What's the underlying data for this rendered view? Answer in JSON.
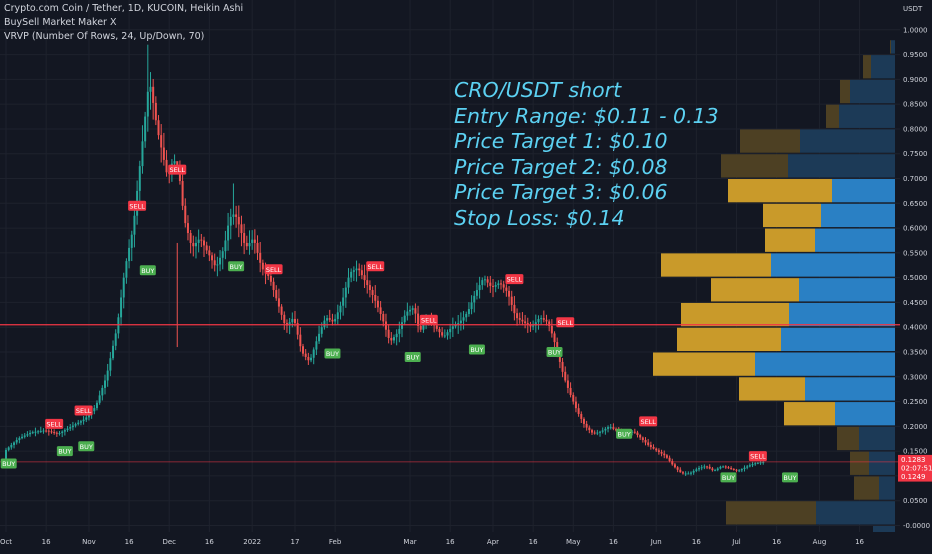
{
  "header": {
    "line1": "Crypto.com Coin / Tether, 1D, KUCOIN, Heikin Ashi",
    "line2": "BuySell Market Maker X",
    "line3": "VRVP (Number Of Rows, 24, Up/Down, 70)"
  },
  "annotation": {
    "lines": [
      "CRO/USDT short",
      "Entry Range: $0.11 - 0.13",
      "Price Target 1: $0.10",
      "Price Target 2: $0.08",
      "Price Target 3: $0.06",
      "Stop Loss: $0.14"
    ]
  },
  "colors": {
    "background": "#131722",
    "grid": "#1e222d",
    "up_candle": "#26a69a",
    "down_candle": "#ef5350",
    "red_line": "#f23645",
    "annotation": "#5cd1f2",
    "vp_up": "#2a80c4",
    "vp_down": "#c99a2a",
    "vp_up_dim": "#1c3a57",
    "vp_down_dim": "#4d4023",
    "buy_label": "#4caf50",
    "sell_label": "#f23645",
    "price_box": "#f23645"
  },
  "chart_data": {
    "type": "candlestick",
    "candle_style": "Heikin Ashi",
    "ylabel": "USDT",
    "ylim": [
      -0.02,
      1.02
    ],
    "y_ticks": [
      "1.0000",
      "0.9500",
      "0.9000",
      "0.8500",
      "0.8000",
      "0.7500",
      "0.7000",
      "0.6500",
      "0.6000",
      "0.5500",
      "0.5000",
      "0.4500",
      "0.4000",
      "0.3500",
      "0.3000",
      "0.2500",
      "0.2000",
      "0.1500",
      "0.1000",
      "0.0500",
      "-0.0000"
    ],
    "y_tick_values": [
      1.0,
      0.95,
      0.9,
      0.85,
      0.8,
      0.75,
      0.7,
      0.65,
      0.6,
      0.55,
      0.5,
      0.45,
      0.4,
      0.35,
      0.3,
      0.25,
      0.2,
      0.15,
      0.1,
      0.05,
      0.0
    ],
    "x_ticks": [
      {
        "label": "Oct",
        "day": 0
      },
      {
        "label": "16",
        "day": 15
      },
      {
        "label": "Nov",
        "day": 31
      },
      {
        "label": "16",
        "day": 46
      },
      {
        "label": "Dec",
        "day": 61
      },
      {
        "label": "16",
        "day": 76
      },
      {
        "label": "2022",
        "day": 92
      },
      {
        "label": "17",
        "day": 108
      },
      {
        "label": "Feb",
        "day": 123
      },
      {
        "label": "Mar",
        "day": 151
      },
      {
        "label": "16",
        "day": 166
      },
      {
        "label": "Apr",
        "day": 182
      },
      {
        "label": "16",
        "day": 197
      },
      {
        "label": "May",
        "day": 212
      },
      {
        "label": "16",
        "day": 227
      },
      {
        "label": "Jun",
        "day": 243
      },
      {
        "label": "16",
        "day": 258
      },
      {
        "label": "Jul",
        "day": 273
      },
      {
        "label": "16",
        "day": 288
      },
      {
        "label": "Aug",
        "day": 304
      },
      {
        "label": "16",
        "day": 319
      }
    ],
    "x_range_days": [
      0,
      330
    ],
    "price_anchors": [
      [
        0,
        0.15
      ],
      [
        5,
        0.175
      ],
      [
        10,
        0.188
      ],
      [
        15,
        0.192
      ],
      [
        20,
        0.185
      ],
      [
        25,
        0.2
      ],
      [
        30,
        0.215
      ],
      [
        34,
        0.24
      ],
      [
        38,
        0.3
      ],
      [
        42,
        0.4
      ],
      [
        45,
        0.52
      ],
      [
        48,
        0.6
      ],
      [
        50,
        0.7
      ],
      [
        52,
        0.8
      ],
      [
        54,
        0.9
      ],
      [
        55,
        0.87
      ],
      [
        57,
        0.8
      ],
      [
        59,
        0.75
      ],
      [
        61,
        0.7
      ],
      [
        63,
        0.74
      ],
      [
        65,
        0.72
      ],
      [
        67,
        0.62
      ],
      [
        70,
        0.56
      ],
      [
        73,
        0.58
      ],
      [
        76,
        0.55
      ],
      [
        79,
        0.52
      ],
      [
        82,
        0.56
      ],
      [
        84,
        0.62
      ],
      [
        86,
        0.63
      ],
      [
        88,
        0.6
      ],
      [
        90,
        0.56
      ],
      [
        93,
        0.58
      ],
      [
        96,
        0.52
      ],
      [
        99,
        0.5
      ],
      [
        102,
        0.45
      ],
      [
        105,
        0.4
      ],
      [
        108,
        0.42
      ],
      [
        111,
        0.35
      ],
      [
        114,
        0.33
      ],
      [
        117,
        0.38
      ],
      [
        120,
        0.42
      ],
      [
        123,
        0.41
      ],
      [
        126,
        0.45
      ],
      [
        129,
        0.51
      ],
      [
        132,
        0.52
      ],
      [
        135,
        0.49
      ],
      [
        138,
        0.46
      ],
      [
        141,
        0.42
      ],
      [
        144,
        0.37
      ],
      [
        147,
        0.39
      ],
      [
        150,
        0.43
      ],
      [
        153,
        0.44
      ],
      [
        155,
        0.39
      ],
      [
        158,
        0.42
      ],
      [
        161,
        0.4
      ],
      [
        164,
        0.38
      ],
      [
        167,
        0.4
      ],
      [
        170,
        0.41
      ],
      [
        173,
        0.43
      ],
      [
        176,
        0.47
      ],
      [
        179,
        0.5
      ],
      [
        182,
        0.48
      ],
      [
        185,
        0.49
      ],
      [
        188,
        0.47
      ],
      [
        191,
        0.42
      ],
      [
        194,
        0.41
      ],
      [
        197,
        0.4
      ],
      [
        200,
        0.42
      ],
      [
        203,
        0.41
      ],
      [
        205,
        0.38
      ],
      [
        207,
        0.34
      ],
      [
        209,
        0.3
      ],
      [
        211,
        0.27
      ],
      [
        214,
        0.23
      ],
      [
        217,
        0.2
      ],
      [
        220,
        0.185
      ],
      [
        223,
        0.19
      ],
      [
        226,
        0.2
      ],
      [
        229,
        0.19
      ],
      [
        232,
        0.185
      ],
      [
        235,
        0.19
      ],
      [
        238,
        0.175
      ],
      [
        241,
        0.16
      ],
      [
        244,
        0.15
      ],
      [
        247,
        0.14
      ],
      [
        250,
        0.12
      ],
      [
        253,
        0.105
      ],
      [
        256,
        0.105
      ],
      [
        259,
        0.115
      ],
      [
        262,
        0.12
      ],
      [
        265,
        0.11
      ],
      [
        268,
        0.12
      ],
      [
        271,
        0.115
      ],
      [
        274,
        0.11
      ],
      [
        277,
        0.118
      ],
      [
        280,
        0.125
      ],
      [
        283,
        0.128
      ]
    ],
    "spikes": [
      {
        "day": 53,
        "high": 0.97
      },
      {
        "day": 64,
        "high": 0.57,
        "low": 0.36
      },
      {
        "day": 85,
        "high": 0.69
      }
    ],
    "horizontal_lines": [
      {
        "price": 0.405,
        "color": "#f23645"
      },
      {
        "price": 0.1283,
        "color": "#f23645"
      }
    ],
    "signals": [
      {
        "type": "BUY",
        "day": 1,
        "price": 0.125,
        "text": "BUY"
      },
      {
        "type": "SELL",
        "day": 18,
        "price": 0.205,
        "text": "SELL"
      },
      {
        "type": "BUY",
        "day": 22,
        "price": 0.15,
        "text": "BUY"
      },
      {
        "type": "SELL",
        "day": 29,
        "price": 0.232,
        "text": "SELL"
      },
      {
        "type": "BUY",
        "day": 30,
        "price": 0.16,
        "text": "BUY"
      },
      {
        "type": "SELL",
        "day": 49,
        "price": 0.645,
        "text": "SELL"
      },
      {
        "type": "BUY",
        "day": 53,
        "price": 0.515,
        "text": "BUY"
      },
      {
        "type": "SELL",
        "day": 64,
        "price": 0.718,
        "text": "SELL"
      },
      {
        "type": "BUY",
        "day": 86,
        "price": 0.523,
        "text": "BUY"
      },
      {
        "type": "SELL",
        "day": 100,
        "price": 0.517,
        "text": "SELL"
      },
      {
        "type": "BUY",
        "day": 122,
        "price": 0.347,
        "text": "BUY"
      },
      {
        "type": "SELL",
        "day": 138,
        "price": 0.523,
        "text": "SELL"
      },
      {
        "type": "BUY",
        "day": 152,
        "price": 0.34,
        "text": "BUY"
      },
      {
        "type": "SELL",
        "day": 158,
        "price": 0.415,
        "text": "SELL"
      },
      {
        "type": "BUY",
        "day": 176,
        "price": 0.355,
        "text": "BUY"
      },
      {
        "type": "SELL",
        "day": 190,
        "price": 0.497,
        "text": "SELL"
      },
      {
        "type": "SELL",
        "day": 209,
        "price": 0.41,
        "text": "SELL"
      },
      {
        "type": "BUY",
        "day": 205,
        "price": 0.35,
        "text": "BUY"
      },
      {
        "type": "BUY",
        "day": 231,
        "price": 0.185,
        "text": "BUY"
      },
      {
        "type": "SELL",
        "day": 240,
        "price": 0.21,
        "text": "SELL"
      },
      {
        "type": "BUY",
        "day": 270,
        "price": 0.097,
        "text": "BUY"
      },
      {
        "type": "SELL",
        "day": 281,
        "price": 0.14,
        "text": "SELL"
      },
      {
        "type": "BUY",
        "day": 293,
        "price": 0.097,
        "text": "BUY"
      }
    ],
    "volume_profile": {
      "rows": [
        {
          "price_low": 0.95,
          "price_high": 0.98,
          "up": 4,
          "down": 1,
          "dim": true
        },
        {
          "price_low": 0.9,
          "price_high": 0.95,
          "up": 24,
          "down": 8,
          "dim": true
        },
        {
          "price_low": 0.85,
          "price_high": 0.9,
          "up": 45,
          "down": 10,
          "dim": true
        },
        {
          "price_low": 0.8,
          "price_high": 0.85,
          "up": 56,
          "down": 13,
          "dim": true
        },
        {
          "price_low": 0.75,
          "price_high": 0.8,
          "up": 95,
          "down": 60,
          "dim": true
        },
        {
          "price_low": 0.7,
          "price_high": 0.75,
          "up": 107,
          "down": 67,
          "dim": true
        },
        {
          "price_low": 0.65,
          "price_high": 0.7,
          "up": 63,
          "down": 104,
          "dim": false
        },
        {
          "price_low": 0.6,
          "price_high": 0.65,
          "up": 74,
          "down": 58,
          "dim": false
        },
        {
          "price_low": 0.55,
          "price_high": 0.6,
          "up": 80,
          "down": 50,
          "dim": false
        },
        {
          "price_low": 0.5,
          "price_high": 0.55,
          "up": 124,
          "down": 110,
          "dim": false
        },
        {
          "price_low": 0.45,
          "price_high": 0.5,
          "up": 96,
          "down": 88,
          "dim": false
        },
        {
          "price_low": 0.4,
          "price_high": 0.45,
          "up": 106,
          "down": 108,
          "dim": false
        },
        {
          "price_low": 0.35,
          "price_high": 0.4,
          "up": 114,
          "down": 104,
          "dim": false
        },
        {
          "price_low": 0.3,
          "price_high": 0.35,
          "up": 140,
          "down": 102,
          "dim": false
        },
        {
          "price_low": 0.25,
          "price_high": 0.3,
          "up": 90,
          "down": 66,
          "dim": false
        },
        {
          "price_low": 0.2,
          "price_high": 0.25,
          "up": 60,
          "down": 51,
          "dim": false
        },
        {
          "price_low": 0.15,
          "price_high": 0.2,
          "up": 36,
          "down": 22,
          "dim": true
        },
        {
          "price_low": 0.1,
          "price_high": 0.15,
          "up": 26,
          "down": 19,
          "dim": true
        },
        {
          "price_low": 0.05,
          "price_high": 0.1,
          "up": 16,
          "down": 25,
          "dim": true
        },
        {
          "price_low": 0.0,
          "price_high": 0.05,
          "up": 79,
          "down": 90,
          "dim": true
        },
        {
          "price_low": -0.05,
          "price_high": 0.0,
          "up": 22,
          "down": 0,
          "dim": true
        },
        {
          "price_low": -0.1,
          "price_high": -0.05,
          "up": 80,
          "down": 55,
          "dim": false
        }
      ]
    },
    "current_price": {
      "value": "0.1283",
      "countdown": "02:07:51",
      "line_value": "0.1249"
    }
  }
}
